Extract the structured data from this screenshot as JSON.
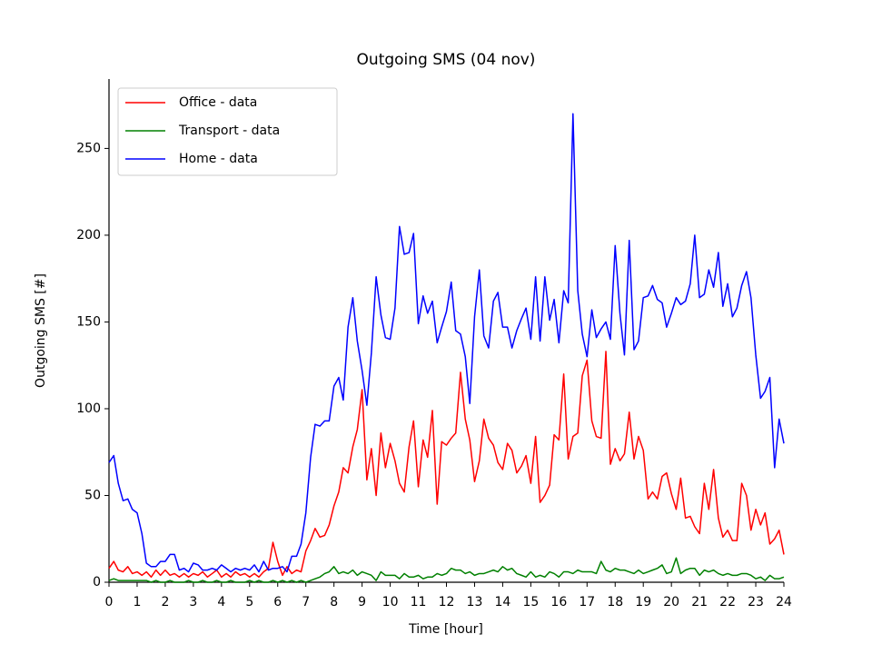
{
  "chart_data": {
    "type": "line",
    "title": "Outgoing SMS (04 nov)",
    "x_label": "Time [hour]",
    "y_label": "Outgoing SMS [#]",
    "legend": "upper left",
    "grid": false,
    "xlim": [
      0,
      24
    ],
    "ylim": [
      0,
      290
    ],
    "xticks": [
      0,
      1,
      2,
      3,
      4,
      5,
      6,
      7,
      8,
      9,
      10,
      11,
      12,
      13,
      14,
      15,
      16,
      17,
      18,
      19,
      20,
      21,
      22,
      23,
      24
    ],
    "yticks": [
      0,
      50,
      100,
      150,
      200,
      250
    ],
    "x": [
      0,
      0.17,
      0.33,
      0.5,
      0.67,
      0.83,
      1,
      1.17,
      1.33,
      1.5,
      1.67,
      1.83,
      2,
      2.17,
      2.33,
      2.5,
      2.67,
      2.83,
      3,
      3.17,
      3.33,
      3.5,
      3.67,
      3.83,
      4,
      4.17,
      4.33,
      4.5,
      4.67,
      4.83,
      5,
      5.17,
      5.33,
      5.5,
      5.67,
      5.83,
      6,
      6.17,
      6.33,
      6.5,
      6.67,
      6.83,
      7,
      7.17,
      7.33,
      7.5,
      7.67,
      7.83,
      8,
      8.17,
      8.33,
      8.5,
      8.67,
      8.83,
      9,
      9.17,
      9.33,
      9.5,
      9.67,
      9.83,
      10,
      10.17,
      10.33,
      10.5,
      10.67,
      10.83,
      11,
      11.17,
      11.33,
      11.5,
      11.67,
      11.83,
      12,
      12.17,
      12.33,
      12.5,
      12.67,
      12.83,
      13,
      13.17,
      13.33,
      13.5,
      13.67,
      13.83,
      14,
      14.17,
      14.33,
      14.5,
      14.67,
      14.83,
      15,
      15.17,
      15.33,
      15.5,
      15.67,
      15.83,
      16,
      16.17,
      16.33,
      16.5,
      16.67,
      16.83,
      17,
      17.17,
      17.33,
      17.5,
      17.67,
      17.83,
      18,
      18.17,
      18.33,
      18.5,
      18.67,
      18.83,
      19,
      19.17,
      19.33,
      19.5,
      19.67,
      19.83,
      20,
      20.17,
      20.33,
      20.5,
      20.67,
      20.83,
      21,
      21.17,
      21.33,
      21.5,
      21.67,
      21.83,
      22,
      22.17,
      22.33,
      22.5,
      22.67,
      22.83,
      23,
      23.17,
      23.33,
      23.5,
      23.67,
      23.83,
      24
    ],
    "series": [
      {
        "name": "Office - data",
        "color": "#ff0000",
        "values": [
          8,
          12,
          7,
          6,
          9,
          5,
          6,
          4,
          6,
          3,
          7,
          4,
          7,
          4,
          5,
          3,
          5,
          3,
          5,
          4,
          6,
          3,
          5,
          7,
          3,
          5,
          3,
          6,
          4,
          5,
          3,
          5,
          3,
          6,
          8,
          23,
          12,
          4,
          9,
          5,
          7,
          6,
          18,
          24,
          31,
          26,
          27,
          33,
          44,
          52,
          66,
          63,
          78,
          88,
          111,
          59,
          77,
          50,
          86,
          66,
          80,
          70,
          57,
          52,
          78,
          93,
          55,
          82,
          72,
          99,
          45,
          81,
          79,
          83,
          86,
          121,
          94,
          82,
          58,
          70,
          94,
          83,
          79,
          69,
          65,
          80,
          76,
          63,
          67,
          73,
          57,
          84,
          46,
          50,
          56,
          85,
          82,
          120,
          71,
          84,
          86,
          119,
          128,
          93,
          84,
          83,
          133,
          68,
          77,
          70,
          74,
          98,
          71,
          84,
          76,
          48,
          52,
          48,
          61,
          63,
          51,
          42,
          60,
          37,
          38,
          32,
          28,
          57,
          42,
          65,
          37,
          26,
          30,
          24,
          24,
          57,
          50,
          30,
          42,
          33,
          40,
          22,
          25,
          30,
          16
        ]
      },
      {
        "name": "Transport - data",
        "color": "#008000",
        "values": [
          1,
          2,
          1,
          1,
          1,
          1,
          1,
          1,
          1,
          0,
          1,
          0,
          0,
          1,
          0,
          0,
          0,
          1,
          0,
          0,
          1,
          0,
          0,
          1,
          0,
          0,
          1,
          0,
          0,
          0,
          1,
          0,
          1,
          0,
          0,
          1,
          0,
          1,
          0,
          1,
          0,
          1,
          0,
          1,
          2,
          3,
          5,
          6,
          9,
          5,
          6,
          5,
          7,
          4,
          6,
          5,
          4,
          1,
          6,
          4,
          4,
          4,
          2,
          5,
          3,
          3,
          4,
          2,
          3,
          3,
          5,
          4,
          5,
          8,
          7,
          7,
          5,
          6,
          4,
          5,
          5,
          6,
          7,
          6,
          9,
          7,
          8,
          5,
          4,
          3,
          6,
          3,
          4,
          3,
          6,
          5,
          3,
          6,
          6,
          5,
          7,
          6,
          6,
          6,
          5,
          12,
          7,
          6,
          8,
          7,
          7,
          6,
          5,
          7,
          5,
          6,
          7,
          8,
          10,
          5,
          6,
          14,
          5,
          7,
          8,
          8,
          4,
          7,
          6,
          7,
          5,
          4,
          5,
          4,
          4,
          5,
          5,
          4,
          2,
          3,
          1,
          4,
          2,
          2,
          3
        ]
      },
      {
        "name": "Home - data",
        "color": "#0000ff",
        "values": [
          69,
          73,
          57,
          47,
          48,
          42,
          40,
          28,
          11,
          9,
          9,
          12,
          12,
          16,
          16,
          7,
          8,
          6,
          11,
          10,
          7,
          7,
          8,
          7,
          10,
          8,
          6,
          8,
          7,
          8,
          7,
          10,
          6,
          12,
          7,
          8,
          8,
          9,
          6,
          15,
          15,
          22,
          40,
          72,
          91,
          90,
          93,
          93,
          113,
          118,
          105,
          147,
          164,
          139,
          122,
          102,
          132,
          176,
          154,
          141,
          140,
          158,
          205,
          189,
          190,
          201,
          149,
          165,
          155,
          162,
          138,
          147,
          156,
          173,
          145,
          143,
          130,
          103,
          153,
          180,
          142,
          135,
          162,
          167,
          147,
          147,
          135,
          145,
          152,
          158,
          140,
          176,
          139,
          176,
          151,
          163,
          138,
          168,
          161,
          270,
          168,
          143,
          130,
          157,
          141,
          146,
          150,
          140,
          194,
          155,
          131,
          197,
          134,
          139,
          164,
          165,
          171,
          163,
          161,
          147,
          155,
          164,
          160,
          162,
          172,
          200,
          164,
          166,
          180,
          170,
          190,
          159,
          172,
          153,
          158,
          171,
          179,
          164,
          131,
          106,
          110,
          118,
          66,
          94,
          80
        ]
      }
    ]
  }
}
